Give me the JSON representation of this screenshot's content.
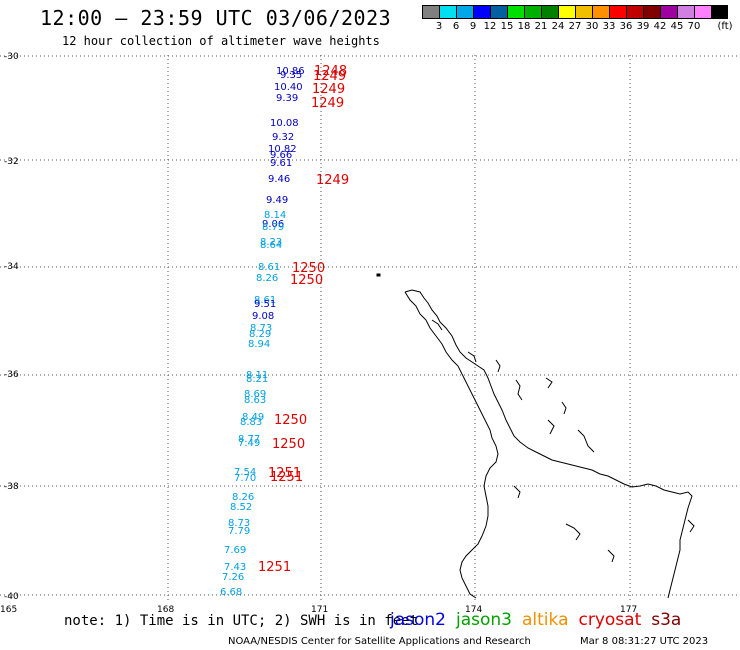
{
  "header": {
    "title": "12:00 – 23:59 UTC 03/06/2023",
    "subtitle": "12 hour collection of altimeter wave heights"
  },
  "scale": {
    "unit": "(ft)",
    "colors": [
      "#808080",
      "#00e0f0",
      "#00a8e8",
      "#0000ff",
      "#0060a0",
      "#00e000",
      "#00b000",
      "#008000",
      "#ffff00",
      "#f0c000",
      "#ff9000",
      "#ff0000",
      "#c00000",
      "#800000",
      "#a000a0",
      "#d080e0",
      "#ff80ff",
      "#000000"
    ],
    "labels": [
      "3",
      "6",
      "9",
      "12",
      "15",
      "18",
      "21",
      "24",
      "27",
      "30",
      "33",
      "36",
      "39",
      "42",
      "45",
      "70"
    ]
  },
  "axes": {
    "lat_labels": [
      "-30",
      "-32",
      "-34",
      "-36",
      "-38",
      "-40"
    ],
    "lon_labels": [
      "165",
      "168",
      "171",
      "174",
      "177"
    ]
  },
  "observations": [
    {
      "label": "10.86",
      "color": "#0000c0"
    },
    {
      "label": "9.35",
      "color": "#0000c0"
    },
    {
      "label": "10.40",
      "color": "#0000c0"
    },
    {
      "label": "9.39",
      "color": "#0000c0"
    },
    {
      "label": "10.08",
      "color": "#0000c0"
    },
    {
      "label": "9.32",
      "color": "#0000c0"
    },
    {
      "label": "10.82",
      "color": "#0000c0"
    },
    {
      "label": "9.66",
      "color": "#0000c0"
    },
    {
      "label": "9.61",
      "color": "#0000c0"
    },
    {
      "label": "9.46",
      "color": "#0000c0"
    },
    {
      "label": "9.49",
      "color": "#0000c0"
    },
    {
      "label": "8.14",
      "color": "#00a0e0"
    },
    {
      "label": "9.06",
      "color": "#0000c0"
    },
    {
      "label": "8.79",
      "color": "#00a0e0"
    },
    {
      "label": "8.23",
      "color": "#00a0e0"
    },
    {
      "label": "8.64",
      "color": "#00a0e0"
    },
    {
      "label": "8.61",
      "color": "#00a0e0"
    },
    {
      "label": "8.26",
      "color": "#00a0e0"
    },
    {
      "label": "8.61",
      "color": "#00a0e0"
    },
    {
      "label": "9.51",
      "color": "#0000c0"
    },
    {
      "label": "9.08",
      "color": "#0000c0"
    },
    {
      "label": "8.73",
      "color": "#00a0e0"
    },
    {
      "label": "8.29",
      "color": "#00a0e0"
    },
    {
      "label": "8.94",
      "color": "#00a0e0"
    },
    {
      "label": "8.11",
      "color": "#00a0e0"
    },
    {
      "label": "8.21",
      "color": "#00a0e0"
    },
    {
      "label": "8.69",
      "color": "#00a0e0"
    },
    {
      "label": "8.63",
      "color": "#00a0e0"
    },
    {
      "label": "8.49",
      "color": "#00a0e0"
    },
    {
      "label": "8.83",
      "color": "#00a0e0"
    },
    {
      "label": "8.77",
      "color": "#00a0e0"
    },
    {
      "label": "7.49",
      "color": "#00a0e0"
    },
    {
      "label": "7.54",
      "color": "#00a0e0"
    },
    {
      "label": "7.70",
      "color": "#00a0e0"
    },
    {
      "label": "8.26",
      "color": "#00a0e0"
    },
    {
      "label": "8.52",
      "color": "#00a0e0"
    },
    {
      "label": "8.73",
      "color": "#00a0e0"
    },
    {
      "label": "7.79",
      "color": "#00a0e0"
    },
    {
      "label": "7.69",
      "color": "#00a0e0"
    },
    {
      "label": "7.43",
      "color": "#00a0e0"
    },
    {
      "label": "7.26",
      "color": "#00a0e0"
    },
    {
      "label": "6.68",
      "color": "#00a0e0"
    }
  ],
  "pass_times": [
    "1248",
    "1249",
    "1249",
    "1249",
    "1249",
    "1250",
    "1250",
    "1250",
    "1250",
    "1251",
    "1251",
    "1251"
  ],
  "footer": {
    "note": "note: 1) Time is in UTC; 2) SWH is in feet",
    "satellites": [
      {
        "name": "jason2",
        "color": "#0000e0"
      },
      {
        "name": "jason3",
        "color": "#00a000"
      },
      {
        "name": "altika",
        "color": "#f09000"
      },
      {
        "name": "cryosat",
        "color": "#e00000"
      },
      {
        "name": "s3a",
        "color": "#800000"
      }
    ],
    "credit": "NOAA/NESDIS Center for Satellite Applications and Research",
    "timestamp": "Mar  8 08:31:27 UTC 2023"
  }
}
